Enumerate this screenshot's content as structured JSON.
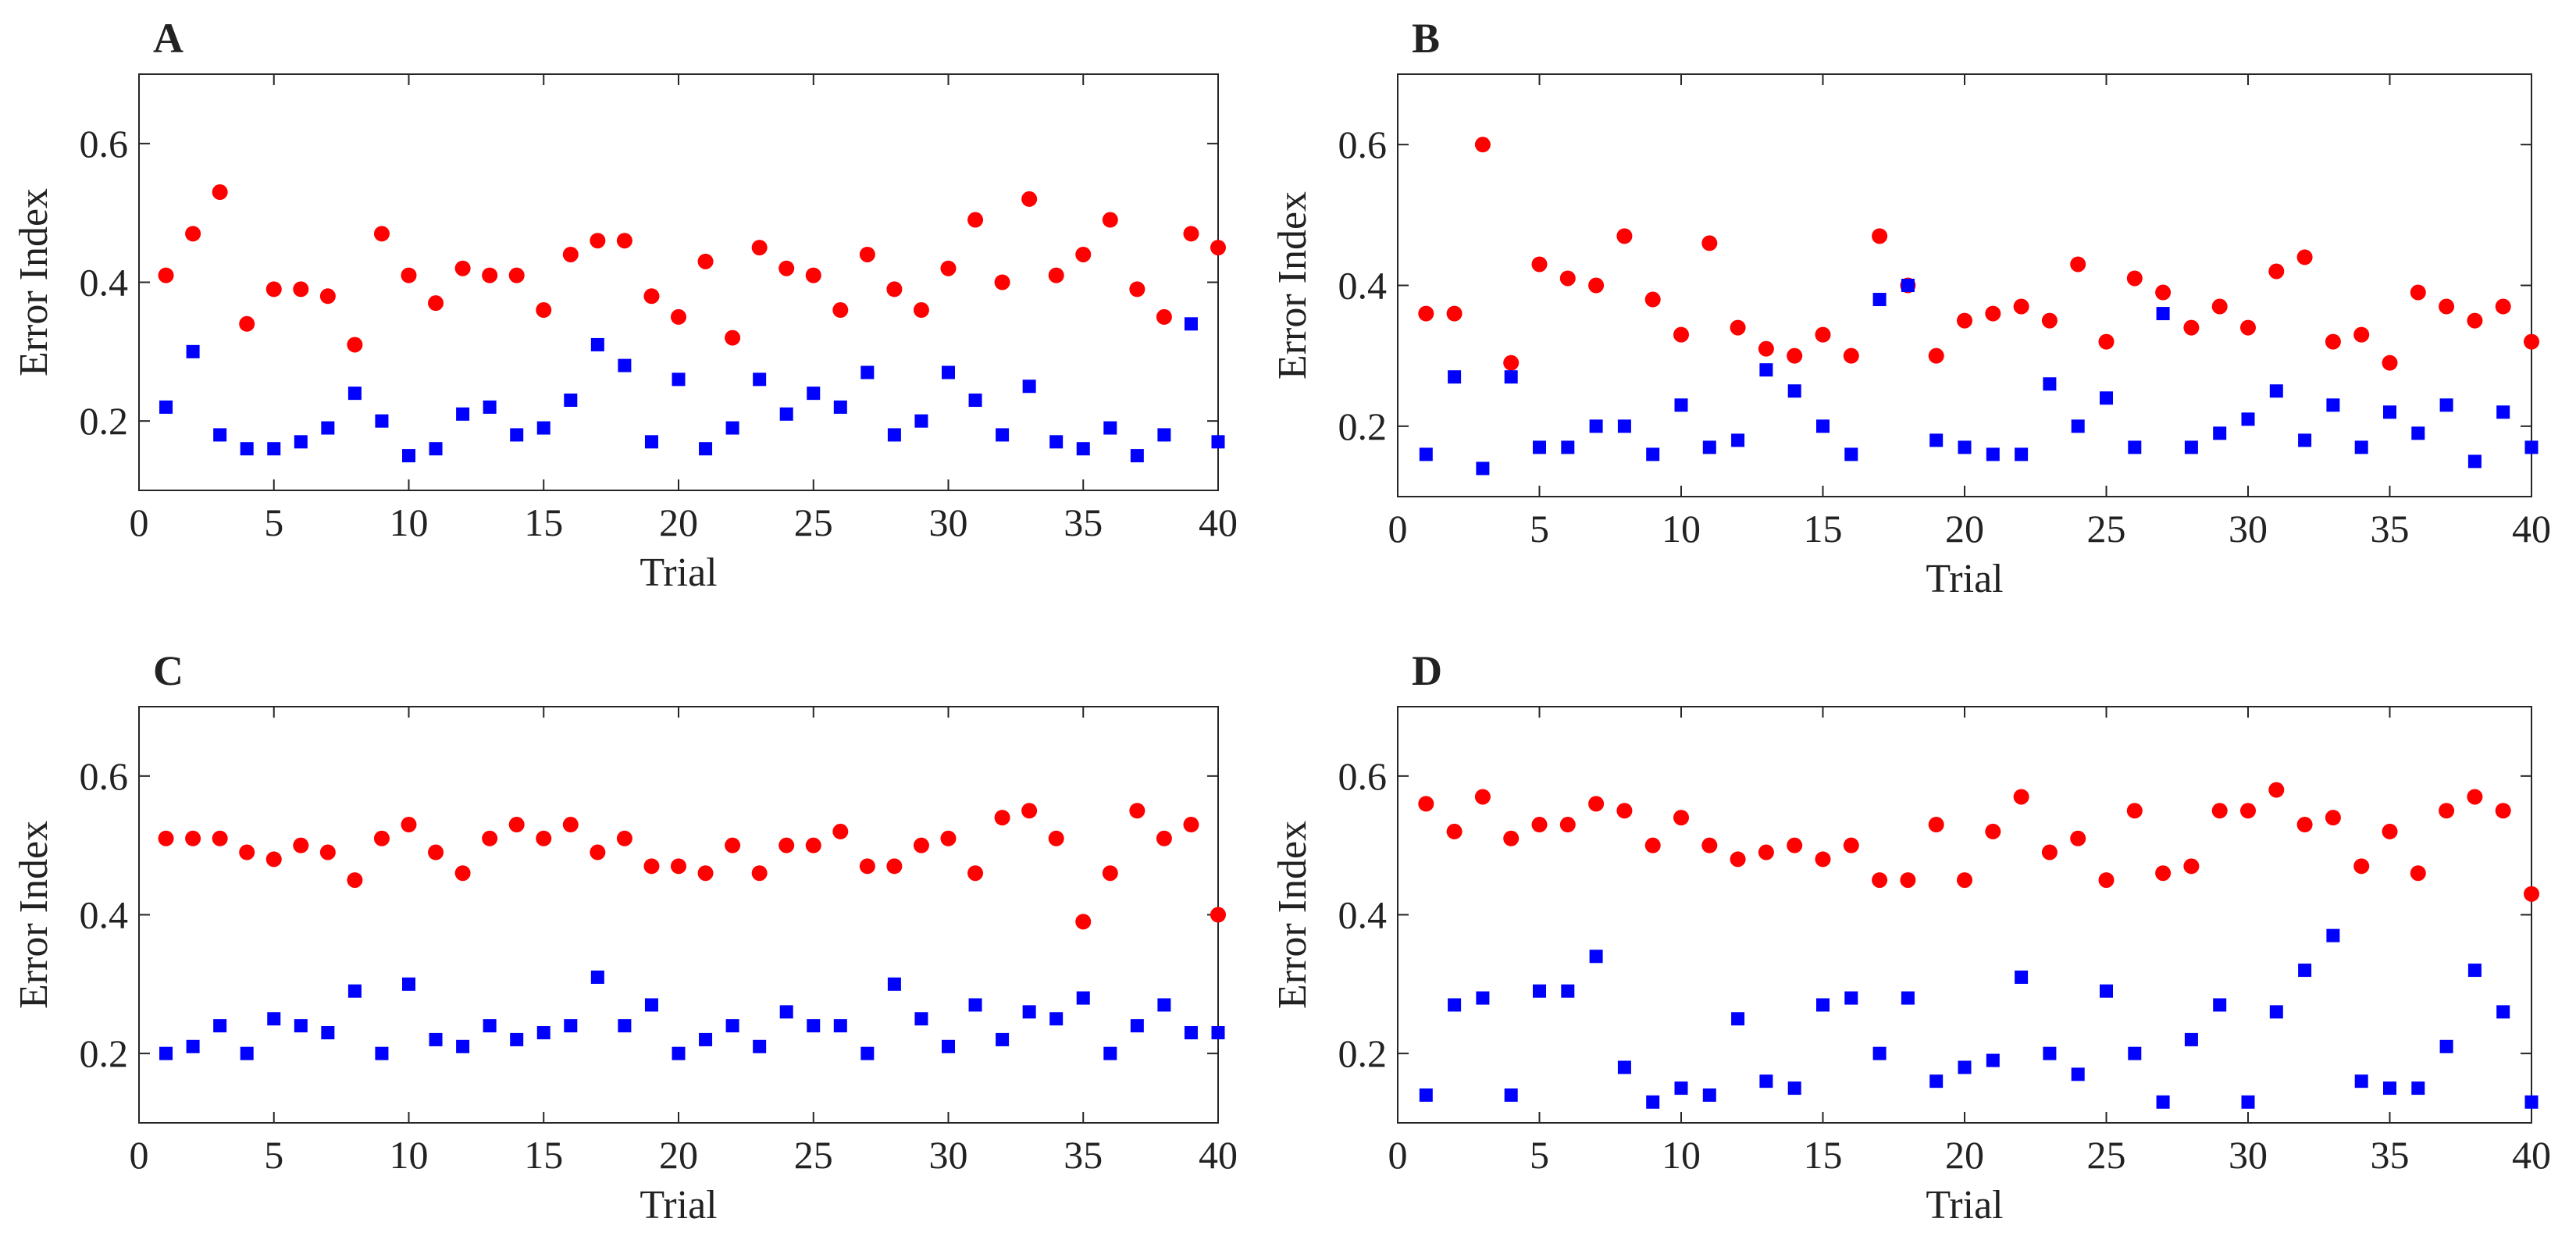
{
  "chart_data": [
    {
      "panel": "A",
      "type": "scatter",
      "xlabel": "Trial",
      "ylabel": "Error Index",
      "xlim": [
        0,
        40
      ],
      "ylim": [
        0.1,
        0.7
      ],
      "xticks": [
        0,
        5,
        10,
        15,
        20,
        25,
        30,
        35,
        40
      ],
      "yticks": [
        0.2,
        0.4,
        0.6
      ],
      "grid": false,
      "colors": {
        "red_series": "#ff0000",
        "blue_series": "#0000ff"
      },
      "x": [
        1,
        2,
        3,
        4,
        5,
        6,
        7,
        8,
        9,
        10,
        11,
        12,
        13,
        14,
        15,
        16,
        17,
        18,
        19,
        20,
        21,
        22,
        23,
        24,
        25,
        26,
        27,
        28,
        29,
        30,
        31,
        32,
        33,
        34,
        35,
        36,
        37,
        38,
        39,
        40
      ],
      "series": [
        {
          "marker": "circle",
          "color": "#ff0000",
          "values": [
            0.41,
            0.47,
            0.53,
            0.34,
            0.39,
            0.39,
            0.38,
            0.31,
            0.47,
            0.41,
            0.37,
            0.42,
            0.41,
            0.41,
            0.36,
            0.44,
            0.46,
            0.46,
            0.38,
            0.35,
            0.43,
            0.32,
            0.45,
            0.42,
            0.41,
            0.36,
            0.44,
            0.39,
            0.36,
            0.42,
            0.49,
            0.4,
            0.52,
            0.41,
            0.44,
            0.49,
            0.39,
            0.35,
            0.47,
            0.45
          ]
        },
        {
          "marker": "square",
          "color": "#0000ff",
          "values": [
            0.22,
            0.3,
            0.18,
            0.16,
            0.16,
            0.17,
            0.19,
            0.24,
            0.2,
            0.15,
            0.16,
            0.21,
            0.22,
            0.18,
            0.19,
            0.23,
            0.31,
            0.28,
            0.17,
            0.26,
            0.16,
            0.19,
            0.26,
            0.21,
            0.24,
            0.22,
            0.27,
            0.18,
            0.2,
            0.27,
            0.23,
            0.18,
            0.25,
            0.17,
            0.16,
            0.19,
            0.15,
            0.18,
            0.34,
            0.17
          ]
        }
      ]
    },
    {
      "panel": "B",
      "type": "scatter",
      "xlabel": "Trial",
      "ylabel": "Error Index",
      "xlim": [
        0,
        40
      ],
      "ylim": [
        0.1,
        0.7
      ],
      "xticks": [
        0,
        5,
        10,
        15,
        20,
        25,
        30,
        35,
        40
      ],
      "yticks": [
        0.2,
        0.4,
        0.6
      ],
      "grid": false,
      "colors": {
        "red_series": "#ff0000",
        "blue_series": "#0000ff"
      },
      "x": [
        1,
        2,
        3,
        4,
        5,
        6,
        7,
        8,
        9,
        10,
        11,
        12,
        13,
        14,
        15,
        16,
        17,
        18,
        19,
        20,
        21,
        22,
        23,
        24,
        25,
        26,
        27,
        28,
        29,
        30,
        31,
        32,
        33,
        34,
        35,
        36,
        37,
        38,
        39,
        40
      ],
      "series": [
        {
          "marker": "circle",
          "color": "#ff0000",
          "values": [
            0.36,
            0.36,
            0.6,
            0.29,
            0.43,
            0.41,
            0.4,
            0.47,
            0.38,
            0.33,
            0.46,
            0.34,
            0.31,
            0.3,
            0.33,
            0.3,
            0.47,
            0.4,
            0.3,
            0.35,
            0.36,
            0.37,
            0.35,
            0.43,
            0.32,
            0.41,
            0.39,
            0.34,
            0.37,
            0.34,
            0.42,
            0.44,
            0.32,
            0.33,
            0.29,
            0.39,
            0.37,
            0.35,
            0.37,
            0.32
          ]
        },
        {
          "marker": "square",
          "color": "#0000ff",
          "values": [
            0.16,
            0.27,
            0.14,
            0.27,
            0.17,
            0.17,
            0.2,
            0.2,
            0.16,
            0.23,
            0.17,
            0.18,
            0.28,
            0.25,
            0.2,
            0.16,
            0.38,
            0.4,
            0.18,
            0.17,
            0.16,
            0.16,
            0.26,
            0.2,
            0.24,
            0.17,
            0.36,
            0.17,
            0.19,
            0.21,
            0.25,
            0.18,
            0.23,
            0.17,
            0.22,
            0.19,
            0.23,
            0.15,
            0.22,
            0.17
          ]
        }
      ]
    },
    {
      "panel": "C",
      "type": "scatter",
      "xlabel": "Trial",
      "ylabel": "Error Index",
      "xlim": [
        0,
        40
      ],
      "ylim": [
        0.1,
        0.7
      ],
      "xticks": [
        0,
        5,
        10,
        15,
        20,
        25,
        30,
        35,
        40
      ],
      "yticks": [
        0.2,
        0.4,
        0.6
      ],
      "grid": false,
      "colors": {
        "red_series": "#ff0000",
        "blue_series": "#0000ff"
      },
      "x": [
        1,
        2,
        3,
        4,
        5,
        6,
        7,
        8,
        9,
        10,
        11,
        12,
        13,
        14,
        15,
        16,
        17,
        18,
        19,
        20,
        21,
        22,
        23,
        24,
        25,
        26,
        27,
        28,
        29,
        30,
        31,
        32,
        33,
        34,
        35,
        36,
        37,
        38,
        39,
        40
      ],
      "series": [
        {
          "marker": "circle",
          "color": "#ff0000",
          "values": [
            0.51,
            0.51,
            0.51,
            0.49,
            0.48,
            0.5,
            0.49,
            0.45,
            0.51,
            0.53,
            0.49,
            0.46,
            0.51,
            0.53,
            0.51,
            0.53,
            0.49,
            0.51,
            0.47,
            0.47,
            0.46,
            0.5,
            0.46,
            0.5,
            0.5,
            0.52,
            0.47,
            0.47,
            0.5,
            0.51,
            0.46,
            0.54,
            0.55,
            0.51,
            0.39,
            0.46,
            0.55,
            0.51,
            0.53,
            0.4
          ]
        },
        {
          "marker": "square",
          "color": "#0000ff",
          "values": [
            0.2,
            0.21,
            0.24,
            0.2,
            0.25,
            0.24,
            0.23,
            0.29,
            0.2,
            0.3,
            0.22,
            0.21,
            0.24,
            0.22,
            0.23,
            0.24,
            0.31,
            0.24,
            0.27,
            0.2,
            0.22,
            0.24,
            0.21,
            0.26,
            0.24,
            0.24,
            0.2,
            0.3,
            0.25,
            0.21,
            0.27,
            0.22,
            0.26,
            0.25,
            0.28,
            0.2,
            0.24,
            0.27,
            0.23,
            0.23
          ]
        }
      ]
    },
    {
      "panel": "D",
      "type": "scatter",
      "xlabel": "Trial",
      "ylabel": "Error Index",
      "xlim": [
        0,
        40
      ],
      "ylim": [
        0.1,
        0.7
      ],
      "xticks": [
        0,
        5,
        10,
        15,
        20,
        25,
        30,
        35,
        40
      ],
      "yticks": [
        0.2,
        0.4,
        0.6
      ],
      "grid": false,
      "colors": {
        "red_series": "#ff0000",
        "blue_series": "#0000ff"
      },
      "x": [
        1,
        2,
        3,
        4,
        5,
        6,
        7,
        8,
        9,
        10,
        11,
        12,
        13,
        14,
        15,
        16,
        17,
        18,
        19,
        20,
        21,
        22,
        23,
        24,
        25,
        26,
        27,
        28,
        29,
        30,
        31,
        32,
        33,
        34,
        35,
        36,
        37,
        38,
        39,
        40
      ],
      "series": [
        {
          "marker": "circle",
          "color": "#ff0000",
          "values": [
            0.56,
            0.52,
            0.57,
            0.51,
            0.53,
            0.53,
            0.56,
            0.55,
            0.5,
            0.54,
            0.5,
            0.48,
            0.49,
            0.5,
            0.48,
            0.5,
            0.45,
            0.45,
            0.53,
            0.45,
            0.52,
            0.57,
            0.49,
            0.51,
            0.45,
            0.55,
            0.46,
            0.47,
            0.55,
            0.55,
            0.58,
            0.53,
            0.54,
            0.47,
            0.52,
            0.46,
            0.55,
            0.57,
            0.55,
            0.43
          ]
        },
        {
          "marker": "square",
          "color": "#0000ff",
          "values": [
            0.14,
            0.27,
            0.28,
            0.14,
            0.29,
            0.29,
            0.34,
            0.18,
            0.13,
            0.15,
            0.14,
            0.25,
            0.16,
            0.15,
            0.27,
            0.28,
            0.2,
            0.28,
            0.16,
            0.18,
            0.19,
            0.31,
            0.2,
            0.17,
            0.29,
            0.2,
            0.13,
            0.22,
            0.27,
            0.13,
            0.26,
            0.32,
            0.37,
            0.16,
            0.15,
            0.15,
            0.21,
            0.32,
            0.26,
            0.13
          ]
        }
      ]
    }
  ]
}
